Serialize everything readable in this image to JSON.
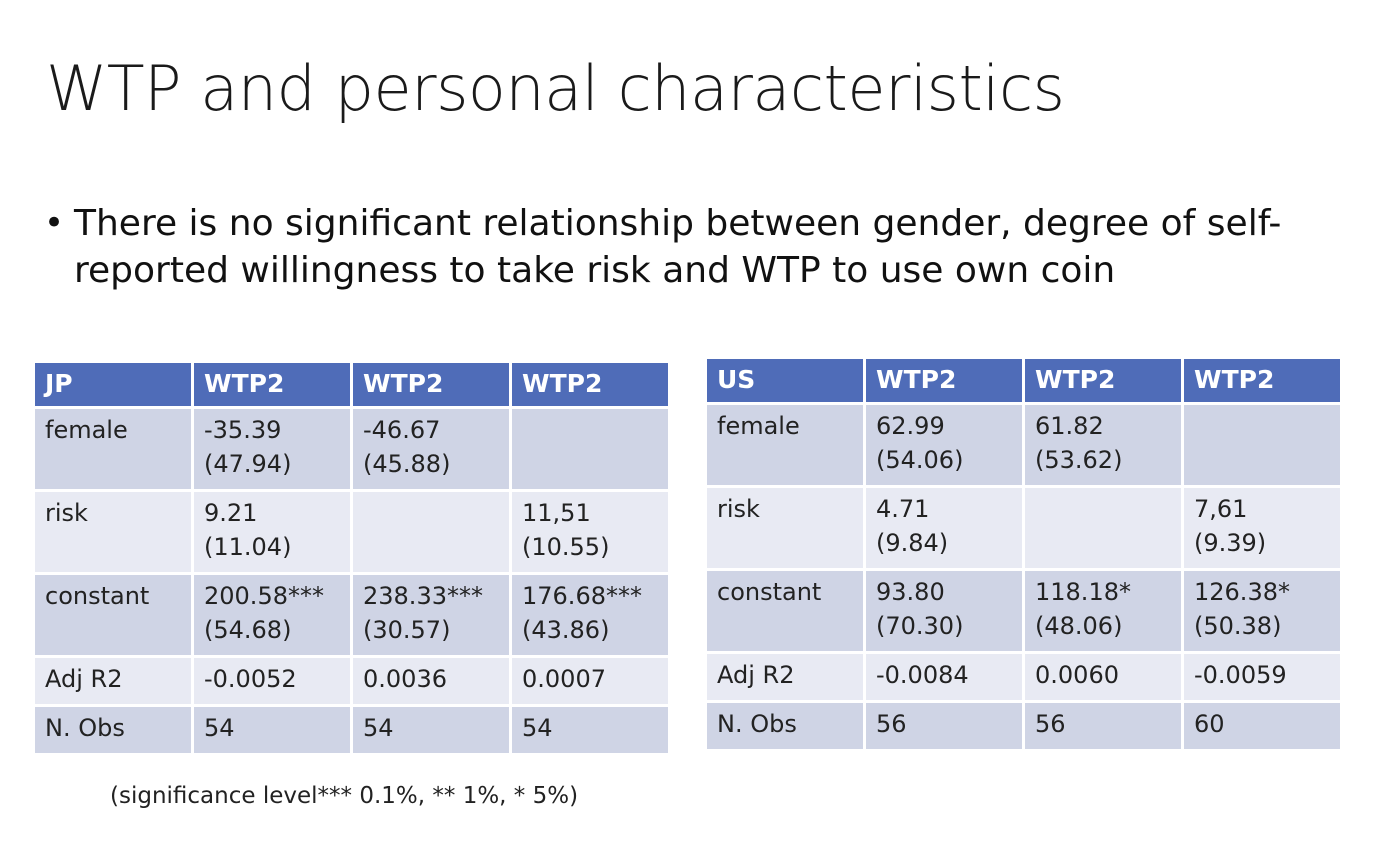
{
  "slide": {
    "title": "WTP and personal characteristics",
    "bullet": "There is no significant relationship between gender, degree of self-reported willingness to take risk and WTP to use own coin",
    "note": "(significance level*** 0.1%, ** 1%, * 5%)"
  },
  "tables": {
    "jp": {
      "header": [
        "JP",
        "WTP2",
        "WTP2",
        "WTP2"
      ],
      "rows": [
        {
          "label": "female",
          "cells": [
            [
              "-35.39",
              "(47.94)"
            ],
            [
              "-46.67",
              "(45.88)"
            ],
            [
              "",
              ""
            ]
          ]
        },
        {
          "label": "risk",
          "cells": [
            [
              "9.21",
              "(11.04)"
            ],
            [
              "",
              ""
            ],
            [
              "11,51",
              "(10.55)"
            ]
          ]
        },
        {
          "label": "constant",
          "cells": [
            [
              "200.58***",
              "(54.68)"
            ],
            [
              "238.33***",
              "(30.57)"
            ],
            [
              "176.68***",
              "(43.86)"
            ]
          ]
        },
        {
          "label": "Adj R2",
          "cells": [
            [
              "-0.0052"
            ],
            [
              "0.0036"
            ],
            [
              "0.0007"
            ]
          ]
        },
        {
          "label": "N. Obs",
          "cells": [
            [
              "54"
            ],
            [
              "54"
            ],
            [
              "54"
            ]
          ]
        }
      ]
    },
    "us": {
      "header": [
        "US",
        "WTP2",
        "WTP2",
        "WTP2"
      ],
      "rows": [
        {
          "label": "female",
          "cells": [
            [
              "62.99",
              "(54.06)"
            ],
            [
              "61.82",
              "(53.62)"
            ],
            [
              "",
              ""
            ]
          ]
        },
        {
          "label": "risk",
          "cells": [
            [
              "4.71",
              "(9.84)"
            ],
            [
              "",
              ""
            ],
            [
              "7,61",
              "(9.39)"
            ]
          ]
        },
        {
          "label": "constant",
          "cells": [
            [
              "93.80",
              "(70.30)"
            ],
            [
              "118.18*",
              "(48.06)"
            ],
            [
              "126.38*",
              "(50.38)"
            ]
          ]
        },
        {
          "label": "Adj R2",
          "cells": [
            [
              "-0.0084"
            ],
            [
              "0.0060"
            ],
            [
              "-0.0059"
            ]
          ]
        },
        {
          "label": "N. Obs",
          "cells": [
            [
              "56"
            ],
            [
              "56"
            ],
            [
              "60"
            ]
          ]
        }
      ]
    }
  },
  "colors": {
    "header_bg": "#4f6cb8",
    "row_odd": "#cfd4e5",
    "row_even": "#e8eaf3"
  }
}
